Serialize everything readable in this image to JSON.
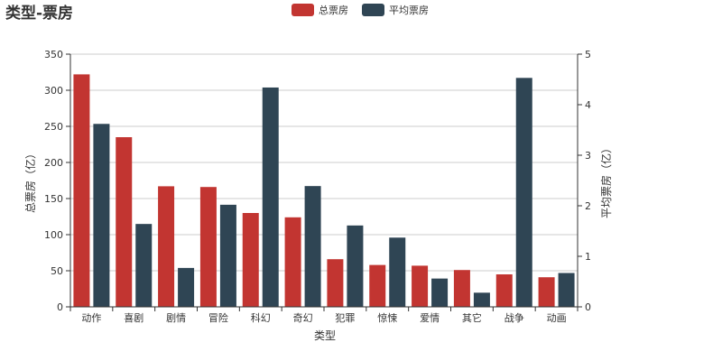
{
  "chart_data": {
    "type": "bar",
    "title": "类型-票房",
    "categories": [
      "动作",
      "喜剧",
      "剧情",
      "冒险",
      "科幻",
      "奇幻",
      "犯罪",
      "惊悚",
      "爱情",
      "其它",
      "战争",
      "动画"
    ],
    "series": [
      {
        "name": "总票房",
        "axis": "left",
        "color": "#c23531",
        "values": [
          322,
          235,
          167,
          166,
          130,
          124,
          66,
          58,
          57,
          51,
          45,
          41
        ]
      },
      {
        "name": "平均票房",
        "axis": "right",
        "color": "#2f4554",
        "values": [
          3.62,
          1.64,
          0.77,
          2.02,
          4.34,
          2.39,
          1.61,
          1.37,
          0.56,
          0.28,
          4.53,
          0.67
        ]
      }
    ],
    "xlabel": "类型",
    "ylabel_left": "总票房（亿）",
    "ylabel_right": "平均票房（亿）",
    "ylim_left": [
      0,
      350
    ],
    "ylim_right": [
      0,
      5
    ],
    "yticks_left": [
      0,
      50,
      100,
      150,
      200,
      250,
      300,
      350
    ],
    "yticks_right": [
      0,
      1,
      2,
      3,
      4,
      5
    ],
    "grid": true,
    "legend": "top-center"
  }
}
